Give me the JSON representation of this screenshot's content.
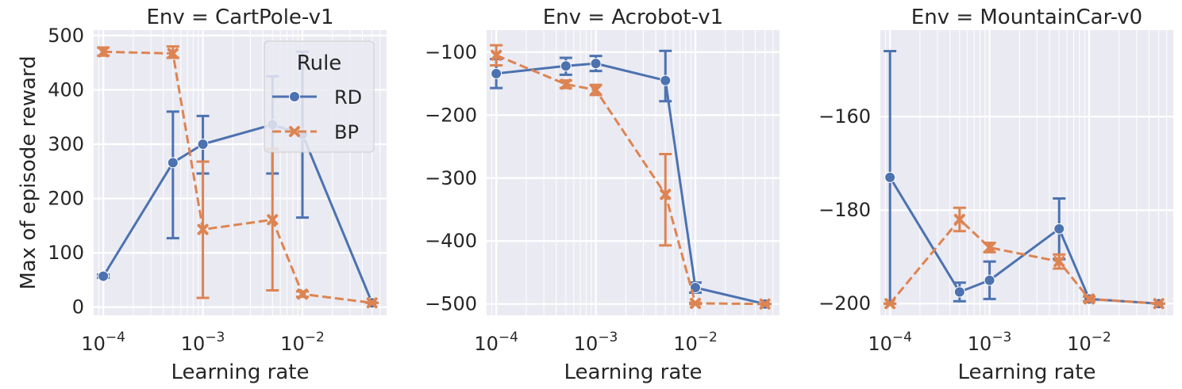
{
  "chart_data": [
    {
      "type": "line",
      "title": "Env = CartPole-v1",
      "xlabel": "Learning rate",
      "ylabel": "Max of episode reward",
      "xscale": "log",
      "xlim": [
        8e-05,
        0.07
      ],
      "ylim": [
        -15,
        510
      ],
      "yticks": [
        0,
        100,
        200,
        300,
        400,
        500
      ],
      "xticks": [
        {
          "value": 0.0001,
          "base": "10",
          "exp": "−4"
        },
        {
          "value": 0.001,
          "base": "10",
          "exp": "−3"
        },
        {
          "value": 0.01,
          "base": "10",
          "exp": "−2"
        }
      ],
      "grid": true,
      "legend": {
        "title": "Rule",
        "placement": "top-right",
        "entries": [
          "RD",
          "BP"
        ]
      },
      "series": [
        {
          "name": "RD",
          "color": "#4c72b0",
          "marker": "circle",
          "dash": "solid",
          "x": [
            0.0001,
            0.0005,
            0.001,
            0.005,
            0.01,
            0.05
          ],
          "y": [
            57,
            266,
            300,
            336,
            318,
            8
          ],
          "err_low": [
            54,
            127,
            246,
            246,
            165,
            8
          ],
          "err_high": [
            60,
            360,
            352,
            425,
            470,
            8
          ]
        },
        {
          "name": "BP",
          "color": "#dd8452",
          "marker": "x",
          "dash": "dashed",
          "x": [
            0.0001,
            0.0005,
            0.001,
            0.005,
            0.01,
            0.05
          ],
          "y": [
            470,
            467,
            143,
            161,
            24,
            8
          ],
          "err_low": [
            463,
            459,
            17,
            31,
            19,
            8
          ],
          "err_high": [
            478,
            480,
            268,
            291,
            29,
            8
          ]
        }
      ]
    },
    {
      "type": "line",
      "title": "Env = Acrobot-v1",
      "xlabel": "Learning rate",
      "ylabel": "",
      "xscale": "log",
      "xlim": [
        8e-05,
        0.07
      ],
      "ylim": [
        -518,
        -65
      ],
      "yticks": [
        -100,
        -200,
        -300,
        -400,
        -500
      ],
      "xticks": [
        {
          "value": 0.0001,
          "base": "10",
          "exp": "−4"
        },
        {
          "value": 0.001,
          "base": "10",
          "exp": "−3"
        },
        {
          "value": 0.01,
          "base": "10",
          "exp": "−2"
        }
      ],
      "grid": true,
      "series": [
        {
          "name": "RD",
          "color": "#4c72b0",
          "marker": "circle",
          "dash": "solid",
          "x": [
            0.0001,
            0.0005,
            0.001,
            0.005,
            0.01,
            0.05
          ],
          "y": [
            -134,
            -122,
            -118,
            -145,
            -474,
            -500
          ],
          "err_low": [
            -157,
            -136,
            -130,
            -178,
            -482,
            -500
          ],
          "err_high": [
            -111,
            -109,
            -106,
            -98,
            -466,
            -500
          ]
        },
        {
          "name": "BP",
          "color": "#dd8452",
          "marker": "x",
          "dash": "dashed",
          "x": [
            0.0001,
            0.0005,
            0.001,
            0.005,
            0.01,
            0.05
          ],
          "y": [
            -105,
            -151,
            -160,
            -326,
            -499,
            -500
          ],
          "err_low": [
            -121,
            -157,
            -168,
            -407,
            -500,
            -500
          ],
          "err_high": [
            -89,
            -145,
            -152,
            -262,
            -498,
            -500
          ]
        }
      ]
    },
    {
      "type": "line",
      "title": "Env = MountainCar-v0",
      "xlabel": "Learning rate",
      "ylabel": "",
      "xscale": "log",
      "xlim": [
        8e-05,
        0.07
      ],
      "ylim": [
        -202.5,
        -141.5
      ],
      "yticks": [
        -160,
        -180,
        -200
      ],
      "xticks": [
        {
          "value": 0.0001,
          "base": "10",
          "exp": "−4"
        },
        {
          "value": 0.001,
          "base": "10",
          "exp": "−3"
        },
        {
          "value": 0.01,
          "base": "10",
          "exp": "−2"
        }
      ],
      "grid": true,
      "series": [
        {
          "name": "RD",
          "color": "#4c72b0",
          "marker": "circle",
          "dash": "solid",
          "x": [
            0.0001,
            0.0005,
            0.001,
            0.005,
            0.01,
            0.05
          ],
          "y": [
            -173,
            -197.5,
            -195,
            -184,
            -199,
            -200
          ],
          "err_low": [
            -200,
            -199.5,
            -199,
            -190.5,
            -199.5,
            -200
          ],
          "err_high": [
            -146,
            -195.5,
            -191,
            -177.5,
            -198.5,
            -200
          ]
        },
        {
          "name": "BP",
          "color": "#dd8452",
          "marker": "x",
          "dash": "dashed",
          "x": [
            0.0001,
            0.0005,
            0.001,
            0.005,
            0.01,
            0.05
          ],
          "y": [
            -200,
            -182,
            -188,
            -191,
            -199,
            -200
          ],
          "err_low": [
            -200,
            -184.5,
            -189,
            -192.5,
            -199.5,
            -200
          ],
          "err_high": [
            -200,
            -179.5,
            -187,
            -189.5,
            -198.5,
            -200
          ]
        }
      ]
    }
  ]
}
